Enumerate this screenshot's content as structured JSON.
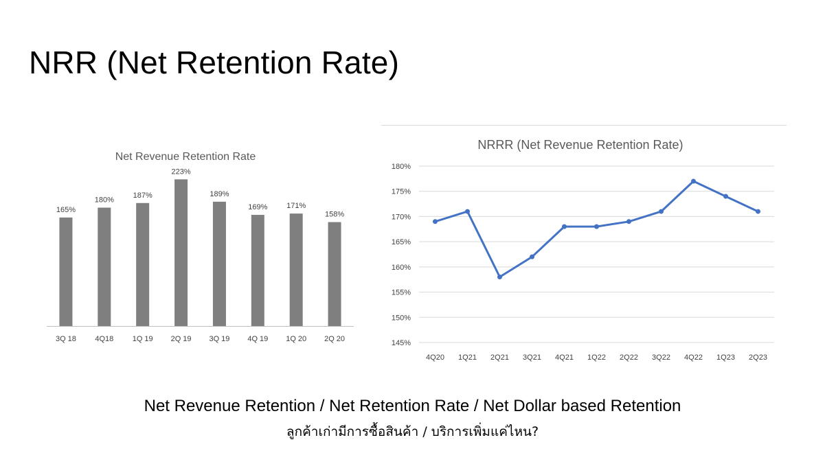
{
  "slide": {
    "title": "NRR (Net Retention Rate)",
    "footer_line1": "Net Revenue Retention / Net Retention Rate / Net Dollar based Retention",
    "footer_line2": "ลูกค้าเก่ามีการซื้อสินค้า / บริการเพิ่มแค่ไหน?"
  },
  "colors": {
    "bar": "#7f7f7f",
    "line": "#4472c4",
    "grid": "#d9d9d9",
    "axis": "#bfbfbf",
    "label": "#404040"
  },
  "chart_data": [
    {
      "type": "bar",
      "title": "Net Revenue Retention Rate",
      "categories": [
        "3Q 18",
        "4Q18",
        "1Q 19",
        "2Q 19",
        "3Q 19",
        "4Q 19",
        "1Q 20",
        "2Q 20"
      ],
      "values": [
        165,
        180,
        187,
        223,
        189,
        169,
        171,
        158
      ],
      "data_labels": [
        "165%",
        "180%",
        "187%",
        "223%",
        "189%",
        "169%",
        "171%",
        "158%"
      ],
      "ylim": [
        0,
        240
      ],
      "grid": false,
      "legend": "none"
    },
    {
      "type": "line",
      "title": "NRRR (Net Revenue Retention Rate)",
      "categories": [
        "4Q20",
        "1Q21",
        "2Q21",
        "3Q21",
        "4Q21",
        "1Q22",
        "2Q22",
        "3Q22",
        "4Q22",
        "1Q23",
        "2Q23"
      ],
      "values": [
        169,
        171,
        158,
        162,
        168,
        168,
        169,
        171,
        177,
        174,
        171
      ],
      "yticks": [
        "180%",
        "175%",
        "170%",
        "165%",
        "160%",
        "155%",
        "150%",
        "145%"
      ],
      "ylim": [
        145,
        180
      ],
      "grid": true,
      "legend": "none"
    }
  ]
}
